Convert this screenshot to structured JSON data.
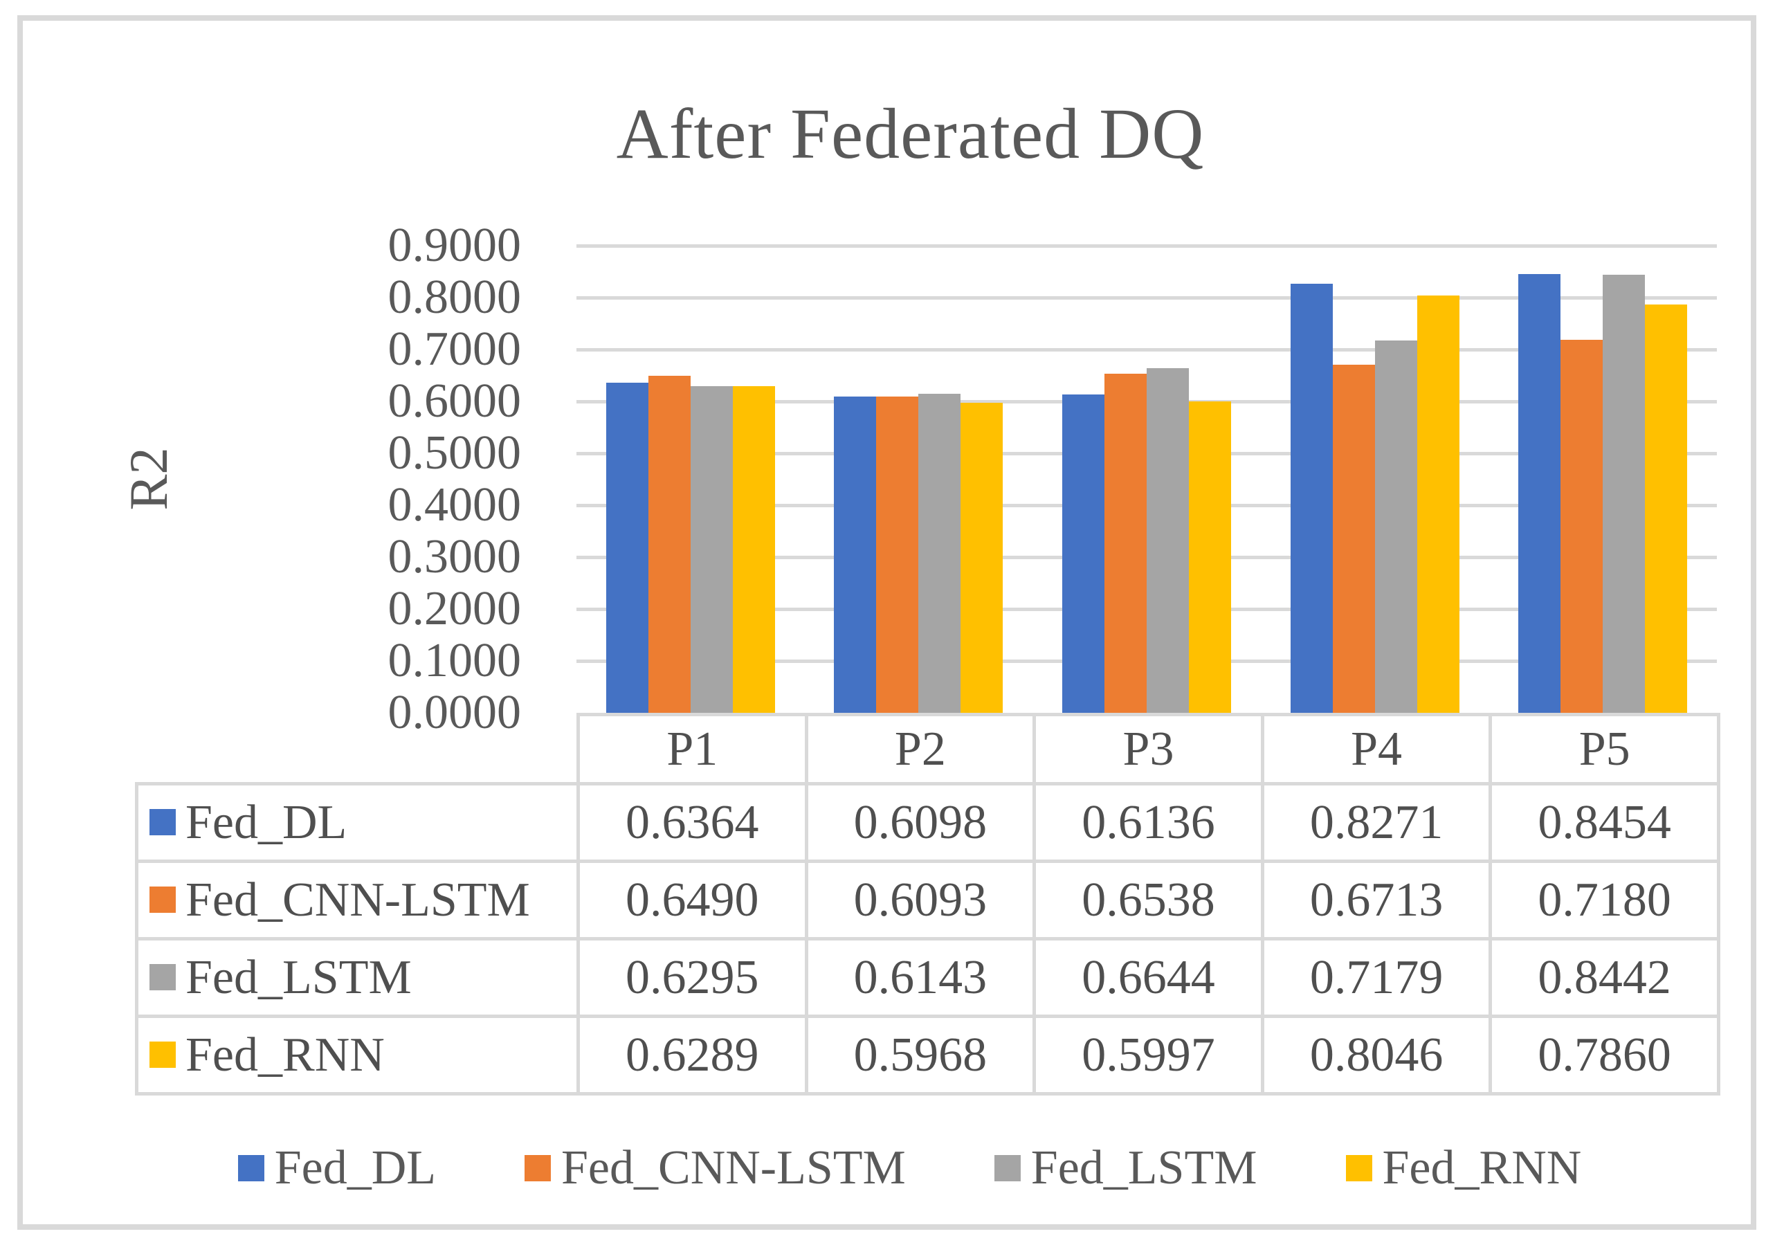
{
  "chart_data": {
    "type": "bar",
    "title": "After Federated DQ",
    "ylabel": "R2",
    "categories": [
      "P1",
      "P2",
      "P3",
      "P4",
      "P5"
    ],
    "series": [
      {
        "name": "Fed_DL",
        "color": "#4472C4",
        "values": [
          0.6364,
          0.6098,
          0.6136,
          0.8271,
          0.8454
        ]
      },
      {
        "name": "Fed_CNN-LSTM",
        "color": "#ED7D31",
        "values": [
          0.649,
          0.6093,
          0.6538,
          0.6713,
          0.718
        ]
      },
      {
        "name": "Fed_LSTM",
        "color": "#A5A5A5",
        "values": [
          0.6295,
          0.6143,
          0.6644,
          0.7179,
          0.8442
        ]
      },
      {
        "name": "Fed_RNN",
        "color": "#FFC000",
        "values": [
          0.6289,
          0.5968,
          0.5997,
          0.8046,
          0.786
        ]
      }
    ],
    "ylim": [
      0.0,
      0.9
    ],
    "ytick_labels": [
      "0.0000",
      "0.1000",
      "0.2000",
      "0.3000",
      "0.4000",
      "0.5000",
      "0.6000",
      "0.7000",
      "0.8000",
      "0.9000"
    ],
    "grid": true,
    "legend_position": "bottom",
    "data_table_shown": true,
    "value_decimals": 4,
    "colors": {
      "grid": "#D9D9D9",
      "frame_border": "#D9D9D9",
      "chart_text": "#595959",
      "table_text": "#4F4F4F"
    }
  }
}
